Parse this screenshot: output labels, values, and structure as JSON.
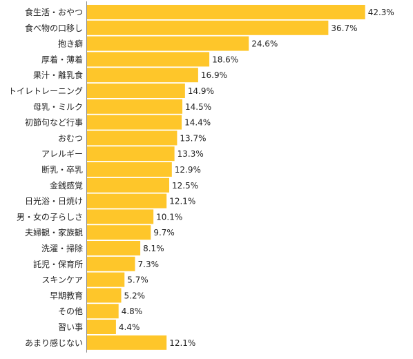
{
  "chart_data": {
    "type": "bar",
    "orientation": "horizontal",
    "title": "",
    "xlabel": "",
    "ylabel": "",
    "xlim": [
      0,
      45
    ],
    "grid": false,
    "legend": "none",
    "bar_color": "#FEC62A",
    "axis_color": "#888888",
    "text_color": "#222222",
    "value_suffix": "%",
    "categories": [
      "食生活・おやつ",
      "食べ物の口移し",
      "抱き癖",
      "厚着・薄着",
      "果汁・離乳食",
      "トイレトレーニング",
      "母乳・ミルク",
      "初節句など行事",
      "おむつ",
      "アレルギー",
      "断乳・卒乳",
      "金銭感覚",
      "日光浴・日焼け",
      "男・女の子らしさ",
      "夫婦観・家族観",
      "洗濯・掃除",
      "託児・保育所",
      "スキンケア",
      "早期教育",
      "その他",
      "習い事",
      "あまり感じない"
    ],
    "values": [
      42.3,
      36.7,
      24.6,
      18.6,
      16.9,
      14.9,
      14.5,
      14.4,
      13.7,
      13.3,
      12.9,
      12.5,
      12.1,
      10.1,
      9.7,
      8.1,
      7.3,
      5.7,
      5.2,
      4.8,
      4.4,
      12.1
    ],
    "value_labels": [
      "42.3%",
      "36.7%",
      "24.6%",
      "18.6%",
      "16.9%",
      "14.9%",
      "14.5%",
      "14.4%",
      "13.7%",
      "13.3%",
      "12.9%",
      "12.5%",
      "12.1%",
      "10.1%",
      "9.7%",
      "8.1%",
      "7.3%",
      "5.7%",
      "5.2%",
      "4.8%",
      "4.4%",
      "12.1%"
    ]
  }
}
